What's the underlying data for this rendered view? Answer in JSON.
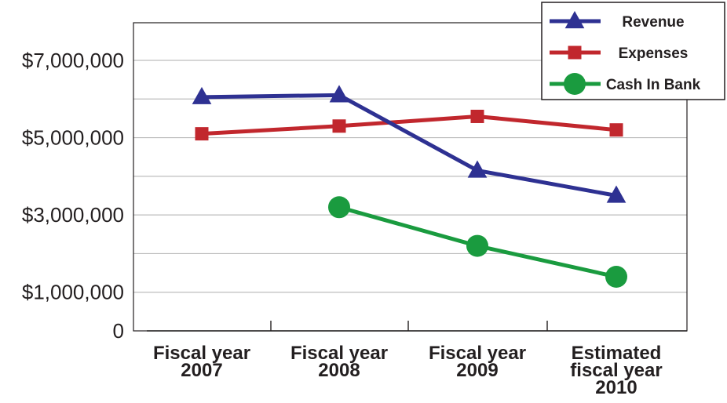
{
  "chart_data": {
    "type": "line",
    "title": "",
    "xlabel": "",
    "ylabel": "",
    "categories": [
      [
        "Fiscal year",
        "2007"
      ],
      [
        "Fiscal year",
        "2008"
      ],
      [
        "Fiscal year",
        "2009"
      ],
      [
        "Estimated",
        "fiscal year",
        "2010"
      ]
    ],
    "y_ticks": [
      {
        "value": 7000000,
        "label": "$7,000,000"
      },
      {
        "value": 5000000,
        "label": "$5,000,000"
      },
      {
        "value": 3000000,
        "label": "$3,000,000"
      },
      {
        "value": 1000000,
        "label": "$1,000,000"
      },
      {
        "value": 0,
        "label": "0"
      }
    ],
    "ylim": [
      0,
      8000000
    ],
    "grid": true,
    "legend_position": "top-right",
    "series": [
      {
        "name": "Revenue",
        "color": "#2e3192",
        "marker": "triangle",
        "values": [
          6050000,
          6100000,
          4150000,
          3500000
        ]
      },
      {
        "name": "Expenses",
        "color": "#c1272d",
        "marker": "square",
        "values": [
          5100000,
          5300000,
          5550000,
          5200000
        ]
      },
      {
        "name": "Cash In Bank",
        "color": "#1a9b3f",
        "marker": "circle",
        "values": [
          null,
          3200000,
          2200000,
          1400000
        ]
      }
    ]
  }
}
